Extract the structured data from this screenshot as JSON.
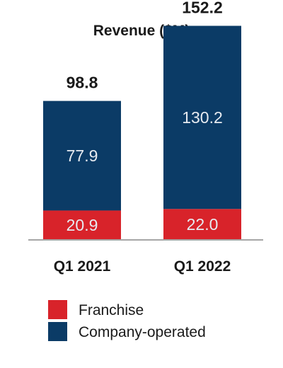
{
  "chart_data": {
    "type": "bar",
    "stacked": true,
    "title": "Revenue ($M)",
    "categories": [
      "Q1 2021",
      "Q1 2022"
    ],
    "series": [
      {
        "name": "Franchise",
        "values": [
          20.9,
          22.0
        ],
        "color": "#d8232a"
      },
      {
        "name": "Company-operated",
        "values": [
          77.9,
          130.2
        ],
        "color": "#0b3b66"
      }
    ],
    "totals": [
      98.8,
      152.2
    ],
    "ylim": [
      0,
      160
    ],
    "grid": false,
    "legend": "bottom-left",
    "axis_color": "#a6a6a6"
  }
}
